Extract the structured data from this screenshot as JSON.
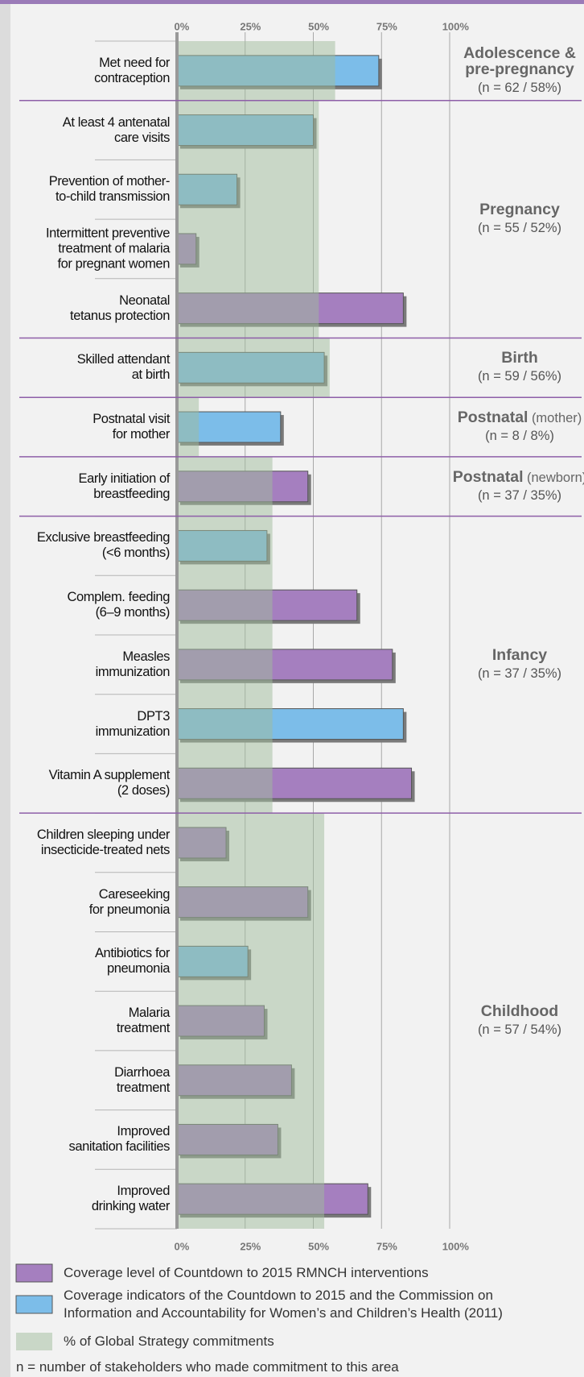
{
  "chart_data": {
    "type": "bar",
    "orientation": "horizontal",
    "xlim": [
      0,
      100
    ],
    "xticks": [
      {
        "value": 0,
        "label": "0%"
      },
      {
        "value": 25,
        "label": "25%"
      },
      {
        "value": 50,
        "label": "50%"
      },
      {
        "value": 75,
        "label": "75%"
      },
      {
        "value": 100,
        "label": "100%"
      }
    ],
    "grid": true,
    "groups": [
      {
        "name": "Adolescence &\npre-pregnancy",
        "note": "(n = 62 / 58%)",
        "commitment": 58,
        "categories": [
          "Met need for\ncontraception"
        ],
        "values": [
          74
        ],
        "colors": [
          "#7cbde9"
        ]
      },
      {
        "name": "Pregnancy",
        "note": "(n = 55 / 52%)",
        "commitment": 52,
        "categories": [
          "At least 4 antenatal\ncare visits",
          "Prevention of mother-\nto-child transmission",
          "Intermittent preventive\ntreatment of malaria\nfor pregnant women",
          "Neonatal\ntetanus protection"
        ],
        "values": [
          50,
          22,
          7,
          83
        ],
        "colors": [
          "#7cbde9",
          "#7cbde9",
          "#a57fbf",
          "#a57fbf"
        ]
      },
      {
        "name": "Birth",
        "note": "(n = 59 / 56%)",
        "commitment": 56,
        "categories": [
          "Skilled attendant\nat birth"
        ],
        "values": [
          54
        ],
        "colors": [
          "#7cbde9"
        ]
      },
      {
        "name": "Postnatal",
        "qualifier": "(mother)",
        "note": "(n = 8 / 8%)",
        "commitment": 8,
        "categories": [
          "Postnatal visit\nfor mother"
        ],
        "values": [
          38
        ],
        "colors": [
          "#7cbde9"
        ]
      },
      {
        "name": "Postnatal",
        "qualifier": "(newborn)",
        "note": "(n = 37 / 35%)",
        "commitment": 35,
        "categories": [
          "Early initiation of\nbreastfeeding"
        ],
        "values": [
          48
        ],
        "colors": [
          "#a57fbf"
        ]
      },
      {
        "name": "Infancy",
        "note": "(n = 37 / 35%)",
        "commitment": 35,
        "categories": [
          "Exclusive breastfeeding\n(<6 months)",
          "Complem. feeding\n(6–9 months)",
          "Measles\nimmunization",
          "DPT3\nimmunization",
          "Vitamin A supplement\n(2 doses)"
        ],
        "values": [
          33,
          66,
          79,
          83,
          86
        ],
        "colors": [
          "#7cbde9",
          "#a57fbf",
          "#a57fbf",
          "#7cbde9",
          "#a57fbf"
        ]
      },
      {
        "name": "Childhood",
        "note": "(n = 57 / 54%)",
        "commitment": 54,
        "categories": [
          "Children sleeping under\ninsecticide-treated nets",
          "Careseeking\nfor pneumonia",
          "Antibiotics for\npneumonia",
          "Malaria\ntreatment",
          "Diarrhoea\ntreatment",
          "Improved\nsanitation facilities",
          "Improved\ndrinking water"
        ],
        "values": [
          18,
          48,
          26,
          32,
          42,
          37,
          70
        ],
        "colors": [
          "#a57fbf",
          "#a57fbf",
          "#7cbde9",
          "#a57fbf",
          "#a57fbf",
          "#a57fbf",
          "#a57fbf"
        ]
      }
    ],
    "legend": [
      {
        "label": "Coverage level of Countdown to 2015 RMNCH interventions",
        "color": "#a57fbf"
      },
      {
        "label": "Coverage indicators of the Countdown to 2015 and the Commission on\nInformation and Accountability for Women’s and Children’s Health (2011)",
        "color": "#7cbde9"
      },
      {
        "label": "% of Global Strategy commitments",
        "color": "#9fbb9b"
      }
    ],
    "footnote": "n = number of stakeholders who made commitment to this area"
  }
}
